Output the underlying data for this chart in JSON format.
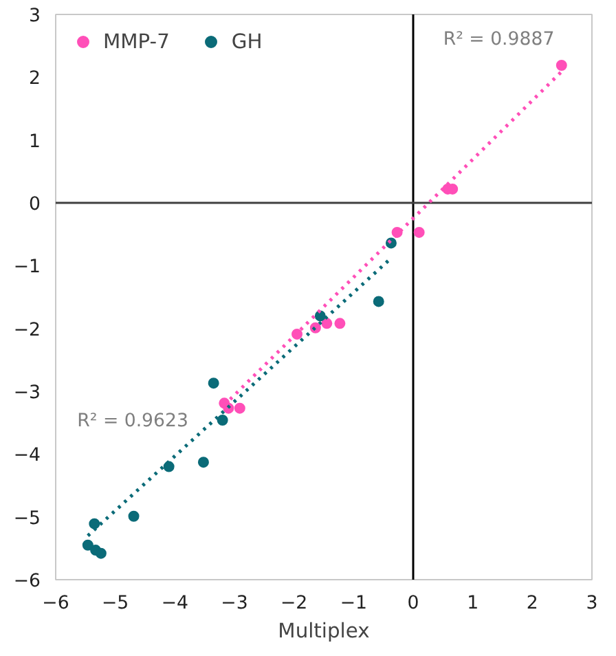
{
  "chart_data": {
    "type": "scatter",
    "xlabel": "Multiplex",
    "series": [
      {
        "name": "MMP-7",
        "color": "#ff4fb8",
        "x": [
          2.49,
          0.58,
          0.66,
          -0.27,
          0.1,
          -1.95,
          -1.64,
          -1.45,
          -1.23,
          -3.17,
          -3.1,
          -2.91
        ],
        "values": [
          2.19,
          0.22,
          0.22,
          -0.47,
          -0.47,
          -2.09,
          -1.99,
          -1.92,
          -1.92,
          -3.19,
          -3.27,
          -3.27
        ]
      },
      {
        "name": "GH",
        "color": "#0b6b78",
        "x": [
          -0.37,
          -0.58,
          -1.56,
          -3.35,
          -3.2,
          -4.1,
          -3.52,
          -4.69,
          -5.35,
          -5.46,
          -5.33,
          -5.24
        ],
        "values": [
          -0.64,
          -1.57,
          -1.8,
          -2.87,
          -3.46,
          -4.2,
          -4.13,
          -4.99,
          -5.11,
          -5.45,
          -5.53,
          -5.58
        ]
      },
      {
        "type": "line",
        "line_style": "dotted",
        "marker": "none",
        "color": "#ff4fb8",
        "x": [
          -3.17,
          2.49
        ],
        "values": [
          -3.22,
          2.09
        ]
      },
      {
        "type": "line",
        "line_style": "dotted",
        "marker": "none",
        "color": "#0b6b78",
        "x": [
          -5.46,
          -0.37
        ],
        "values": [
          -5.3,
          -0.88
        ]
      }
    ],
    "marker": "circle",
    "xlim": [
      -6,
      3
    ],
    "ylim": [
      -6,
      3
    ],
    "xticks": [
      -6,
      -5,
      -4,
      -3,
      -2,
      -1,
      0,
      1,
      2,
      3
    ],
    "yticks": [
      -6,
      -5,
      -4,
      -3,
      -2,
      -1,
      0,
      1,
      2,
      3
    ],
    "grid": false,
    "legend": "top left",
    "ref_lines": [
      {
        "axis": "x",
        "value": 0,
        "color": "#000000"
      },
      {
        "axis": "y",
        "value": 0,
        "color": "#404040"
      }
    ],
    "annotations": [
      "R² = 0.9887",
      "R² = 0.9623"
    ]
  }
}
